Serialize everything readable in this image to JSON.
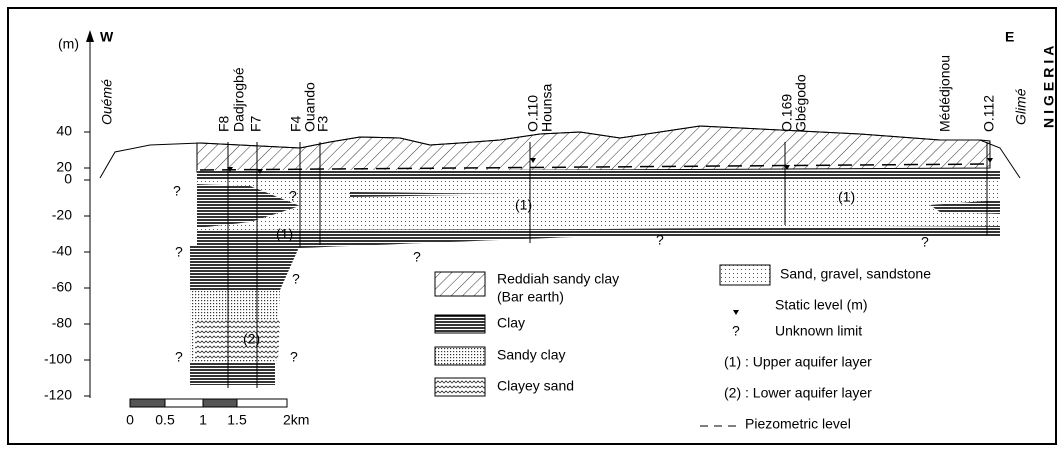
{
  "axis": {
    "unit": "(m)",
    "ticks": [
      "40",
      "20",
      "0",
      "-20",
      "-40",
      "-60",
      "-80",
      "-100",
      "-120"
    ]
  },
  "section": {
    "west": "W",
    "east": "E",
    "places": [
      "Ouémé",
      "Glimé"
    ],
    "country": "NIGERIA",
    "boreholes": [
      "F8",
      "Dadjrogbé",
      "F7",
      "F4",
      "Ouando",
      "F3",
      "O.110",
      "Hounsa",
      "O.169",
      "Gbégodo",
      "Médédjonou",
      "O.112"
    ],
    "unknown_marks": [
      "?",
      "?",
      "?",
      "?",
      "?",
      "?",
      "?",
      "?",
      "?"
    ],
    "aquifer_marks": [
      "(1)",
      "(1)",
      "(1)",
      "(2)"
    ]
  },
  "legend": {
    "reddiah": [
      "Reddiah sandy clay",
      "(Bar earth)"
    ],
    "clay": "Clay",
    "sandy_clay": "Sandy clay",
    "clayey_sand": "Clayey sand",
    "sand": "Sand, gravel, sandstone",
    "static": "Static level (m)",
    "unknown_symbol": "?",
    "unknown": "Unknown limit",
    "upper": "(1) : Upper aquifer layer",
    "lower": "(2) : Lower aquifer layer",
    "piezometric": "Piezometric level"
  },
  "scale": [
    "0",
    "0.5",
    "1",
    "1.5",
    "2km"
  ]
}
